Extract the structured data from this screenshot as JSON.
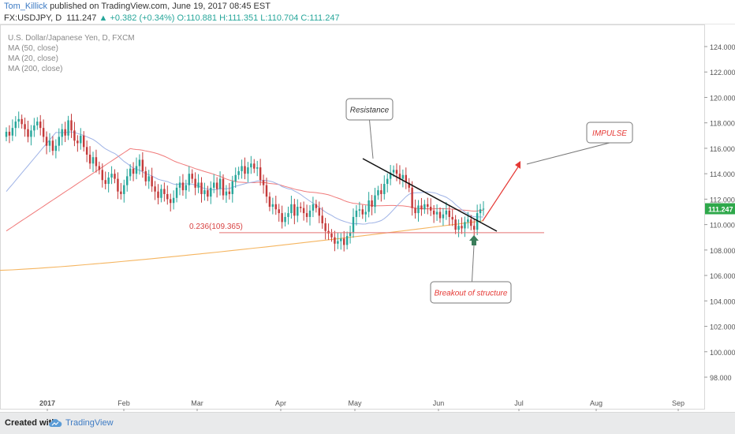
{
  "header": {
    "author": "Tom_Killick",
    "published": " published on TradingView.com, June 19, 2017 08:45 EST",
    "symbol": "FX:USDJPY, D",
    "last": "111.247",
    "change": "+0.382 (+0.34%)",
    "ohlc": "O:110.881 H:111.351 L:110.704 C:111.247"
  },
  "footer": {
    "created_with": "Created with",
    "brand": "TradingView"
  },
  "colors": {
    "up": "#26a69a",
    "down": "#c43a3a",
    "ma50": "#f07a7a",
    "ma20": "#9fb3e6",
    "ma200": "#f5b560",
    "annotation_red": "#e53935",
    "price_tag": "#2ea84a",
    "arrow_green": "#3a7d5a"
  },
  "chart_data": {
    "type": "candlestick",
    "title": "U.S. Dollar/Japanese Yen, D, FXCM",
    "legend": [
      "MA (50, close)",
      "MA (20, close)",
      "MA (200, close)"
    ],
    "y_ticks": [
      "124.000",
      "122.000",
      "120.000",
      "118.000",
      "116.000",
      "114.000",
      "112.000",
      "110.000",
      "108.000",
      "106.000",
      "104.000",
      "102.000",
      "100.000",
      "98.000"
    ],
    "ylim": [
      96.6,
      125.1
    ],
    "x_labels": [
      "2017",
      "Feb",
      "Mar",
      "Apr",
      "May",
      "Jun",
      "Jul",
      "Aug",
      "Sep"
    ],
    "current_price": "111.247",
    "fib_label": "0.236(109.365)",
    "fib_level": 109.365,
    "closes": [
      117.3,
      117.0,
      117.6,
      118.1,
      118.3,
      117.9,
      117.5,
      116.9,
      117.4,
      117.8,
      118.1,
      117.6,
      116.9,
      116.2,
      116.6,
      115.8,
      116.2,
      116.9,
      117.5,
      117.0,
      118.2,
      117.4,
      116.6,
      116.4,
      117.0,
      116.1,
      115.5,
      114.8,
      115.3,
      114.6,
      114.3,
      113.5,
      113.2,
      113.7,
      114.0,
      113.6,
      112.6,
      112.4,
      113.1,
      113.8,
      114.4,
      114.0,
      114.6,
      115.1,
      114.2,
      113.4,
      113.8,
      113.0,
      112.6,
      112.1,
      112.8,
      112.4,
      112.0,
      111.7,
      112.1,
      112.9,
      113.3,
      112.7,
      113.1,
      114.0,
      113.6,
      112.9,
      113.3,
      112.4,
      112.7,
      112.2,
      112.9,
      113.3,
      112.8,
      113.6,
      112.3,
      112.6,
      112.4,
      113.4,
      113.9,
      114.2,
      114.6,
      114.0,
      114.5,
      114.8,
      114.4,
      114.5,
      113.5,
      113.1,
      112.2,
      111.4,
      111.6,
      111.2,
      110.9,
      110.2,
      110.6,
      110.9,
      111.6,
      110.7,
      111.4,
      111.3,
      110.9,
      110.6,
      111.1,
      111.6,
      111.3,
      110.7,
      110.1,
      109.5,
      109.3,
      109.0,
      108.5,
      108.7,
      108.9,
      108.4,
      109.1,
      109.4,
      110.6,
      111.1,
      111.2,
      110.8,
      111.0,
      111.9,
      111.4,
      112.3,
      112.7,
      112.4,
      113.2,
      113.6,
      114.1,
      114.3,
      114.0,
      113.6,
      113.9,
      113.3,
      112.9,
      111.3,
      110.9,
      111.5,
      111.2,
      111.6,
      111.4,
      111.1,
      110.8,
      111.0,
      110.5,
      110.8,
      111.1,
      110.6,
      110.4,
      109.6,
      109.9,
      109.7,
      110.2,
      110.4,
      109.9,
      109.6,
      110.9,
      111.2,
      111.25
    ]
  }
}
